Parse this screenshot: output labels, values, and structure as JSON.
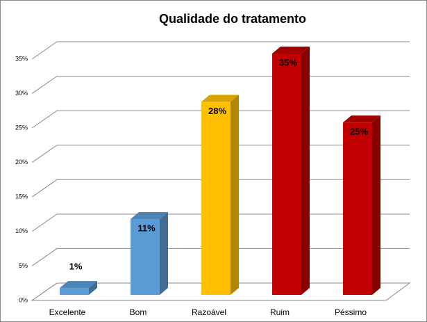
{
  "chart_data": {
    "type": "bar3d",
    "title": "Qualidade do tratamento",
    "categories": [
      "Excelente",
      "Bom",
      "Razoável",
      "Ruim",
      "Péssimo"
    ],
    "values": [
      1,
      11,
      28,
      35,
      25
    ],
    "value_labels": [
      "1%",
      "11%",
      "28%",
      "35%",
      "25%"
    ],
    "colors": [
      "#5b9bd5",
      "#5b9bd5",
      "#ffc000",
      "#c00000",
      "#c00000"
    ],
    "ylim": [
      0,
      35
    ],
    "yticks": [
      {
        "value": 0,
        "label": "0%"
      },
      {
        "value": 5,
        "label": "5%"
      },
      {
        "value": 10,
        "label": "10%"
      },
      {
        "value": 15,
        "label": "15%"
      },
      {
        "value": 20,
        "label": "20%"
      },
      {
        "value": 25,
        "label": "25%"
      },
      {
        "value": 30,
        "label": "30%"
      },
      {
        "value": 35,
        "label": "35%"
      }
    ],
    "grid": true
  }
}
